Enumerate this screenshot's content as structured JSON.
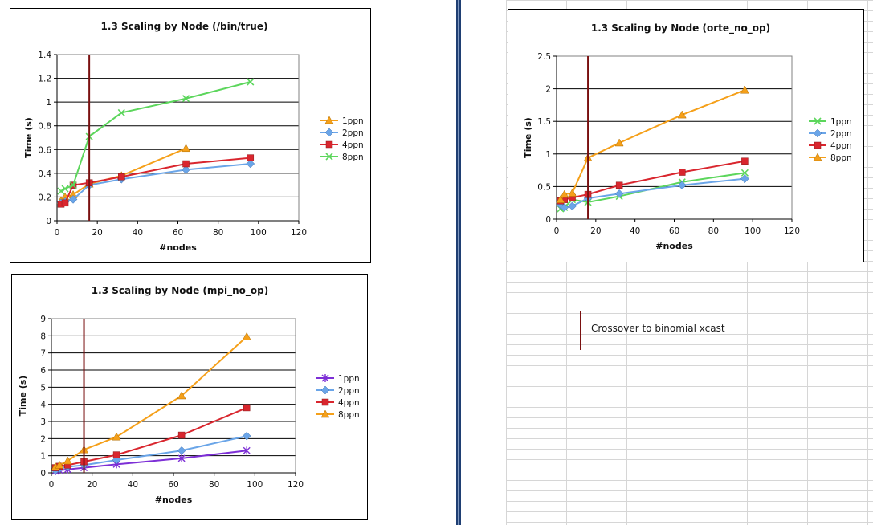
{
  "note": {
    "text": "Crossover to binomial xcast"
  },
  "chart_data": [
    {
      "type": "line",
      "title": "1.3 Scaling by Node (/bin/true)",
      "xlabel": "#nodes",
      "ylabel": "Time (s)",
      "xlim": [
        0,
        120
      ],
      "ylim": [
        0,
        1.4
      ],
      "xticks": [
        0,
        20,
        40,
        60,
        80,
        100,
        120
      ],
      "yticks": [
        0,
        0.2,
        0.4,
        0.6,
        0.8,
        1,
        1.2,
        1.4
      ],
      "xtick_labels": [
        "0",
        "20",
        "40",
        "60",
        "80",
        "100",
        "120"
      ],
      "ytick_labels": [
        "0",
        "0.2",
        "0.4",
        "0.6",
        "0.8",
        "1",
        "1.2",
        "1.4"
      ],
      "grid": "horizontal",
      "legend": "right",
      "marker_line_x": 16,
      "series": [
        {
          "name": "1ppn",
          "color": "#f5a01a",
          "marker": "triangle",
          "x": [
            2,
            4,
            8,
            16,
            32,
            64
          ],
          "y": [
            0.17,
            0.2,
            0.22,
            0.31,
            0.38,
            0.61
          ]
        },
        {
          "name": "2ppn",
          "color": "#6aa5e8",
          "marker": "diamond",
          "x": [
            2,
            4,
            8,
            16,
            32,
            64,
            96
          ],
          "y": [
            0.15,
            0.16,
            0.18,
            0.3,
            0.35,
            0.43,
            0.48
          ]
        },
        {
          "name": "4ppn",
          "color": "#d9262e",
          "marker": "square",
          "x": [
            2,
            4,
            8,
            16,
            32,
            64,
            96
          ],
          "y": [
            0.14,
            0.15,
            0.3,
            0.32,
            0.37,
            0.48,
            0.53
          ]
        },
        {
          "name": "8ppn",
          "color": "#5cd65c",
          "marker": "x",
          "x": [
            2,
            4,
            8,
            16,
            32,
            64,
            96
          ],
          "y": [
            0.25,
            0.27,
            0.3,
            0.71,
            0.91,
            1.03,
            1.17
          ]
        }
      ]
    },
    {
      "type": "line",
      "title": "1.3 Scaling by Node (orte_no_op)",
      "xlabel": "#nodes",
      "ylabel": "Time (s)",
      "xlim": [
        0,
        120
      ],
      "ylim": [
        0,
        2.5
      ],
      "xticks": [
        0,
        20,
        40,
        60,
        80,
        100,
        120
      ],
      "yticks": [
        0,
        0.5,
        1,
        1.5,
        2,
        2.5
      ],
      "xtick_labels": [
        "0",
        "20",
        "40",
        "60",
        "80",
        "100",
        "120"
      ],
      "ytick_labels": [
        "0",
        "0.5",
        "1",
        "1.5",
        "2",
        "2.5"
      ],
      "grid": "horizontal",
      "legend": "right",
      "marker_line_x": 16,
      "series": [
        {
          "name": "1ppn",
          "color": "#5cd65c",
          "marker": "x",
          "x": [
            2,
            4,
            8,
            16,
            32,
            64,
            96
          ],
          "y": [
            0.16,
            0.18,
            0.3,
            0.26,
            0.35,
            0.57,
            0.71
          ]
        },
        {
          "name": "2ppn",
          "color": "#6aa5e8",
          "marker": "diamond",
          "x": [
            2,
            4,
            8,
            16,
            32,
            64,
            96
          ],
          "y": [
            0.22,
            0.18,
            0.2,
            0.32,
            0.39,
            0.52,
            0.62
          ]
        },
        {
          "name": "4ppn",
          "color": "#d9262e",
          "marker": "square",
          "x": [
            2,
            4,
            8,
            16,
            32,
            64,
            96
          ],
          "y": [
            0.28,
            0.3,
            0.33,
            0.38,
            0.52,
            0.72,
            0.89
          ]
        },
        {
          "name": "8ppn",
          "color": "#f5a01a",
          "marker": "triangle",
          "x": [
            2,
            4,
            8,
            16,
            32,
            64,
            96
          ],
          "y": [
            0.3,
            0.38,
            0.4,
            0.94,
            1.17,
            1.6,
            1.98
          ]
        }
      ]
    },
    {
      "type": "line",
      "title": "1.3 Scaling by Node (mpi_no_op)",
      "xlabel": "#nodes",
      "ylabel": "Time (s)",
      "xlim": [
        0,
        120
      ],
      "ylim": [
        0,
        9
      ],
      "xticks": [
        0,
        20,
        40,
        60,
        80,
        100,
        120
      ],
      "yticks": [
        0,
        1,
        2,
        3,
        4,
        5,
        6,
        7,
        8,
        9
      ],
      "xtick_labels": [
        "0",
        "20",
        "40",
        "60",
        "80",
        "100",
        "120"
      ],
      "ytick_labels": [
        "0",
        "1",
        "2",
        "3",
        "4",
        "5",
        "6",
        "7",
        "8",
        "9"
      ],
      "grid": "horizontal",
      "legend": "right",
      "marker_line_x": 16,
      "series": [
        {
          "name": "1ppn",
          "color": "#7d2fd6",
          "marker": "star",
          "x": [
            2,
            4,
            8,
            16,
            32,
            64,
            96
          ],
          "y": [
            0.1,
            0.15,
            0.2,
            0.3,
            0.5,
            0.85,
            1.3
          ]
        },
        {
          "name": "2ppn",
          "color": "#6aa5e8",
          "marker": "diamond",
          "x": [
            2,
            4,
            8,
            16,
            32,
            64,
            96
          ],
          "y": [
            0.15,
            0.25,
            0.35,
            0.45,
            0.75,
            1.3,
            2.15
          ]
        },
        {
          "name": "4ppn",
          "color": "#d9262e",
          "marker": "square",
          "x": [
            2,
            4,
            8,
            16,
            32,
            64,
            96
          ],
          "y": [
            0.3,
            0.38,
            0.45,
            0.65,
            1.05,
            2.2,
            3.8
          ]
        },
        {
          "name": "8ppn",
          "color": "#f5a01a",
          "marker": "triangle",
          "x": [
            2,
            4,
            8,
            16,
            32,
            64,
            96
          ],
          "y": [
            0.35,
            0.45,
            0.7,
            1.35,
            2.1,
            4.5,
            7.95
          ]
        }
      ]
    }
  ]
}
